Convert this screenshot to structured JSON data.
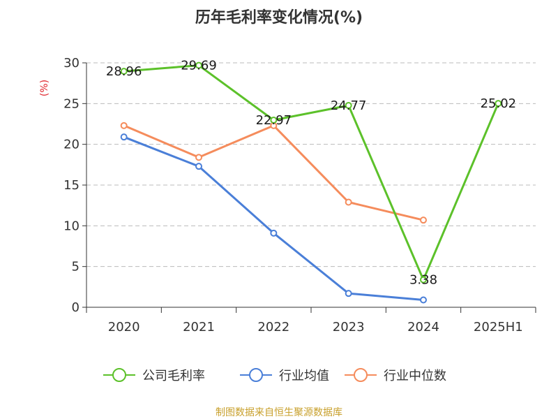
{
  "chart_data": {
    "type": "line",
    "title": "历年毛利率变化情况(%)",
    "ylabel": "(%)",
    "categories": [
      "2020",
      "2021",
      "2022",
      "2023",
      "2024",
      "2025H1"
    ],
    "ylim": [
      0,
      30
    ],
    "yticks": [
      "0",
      "5",
      "10",
      "15",
      "20",
      "25",
      "30"
    ],
    "grid": true,
    "legend_position": "bottom",
    "series": [
      {
        "name": "公司毛利率",
        "color": "#5cc12a",
        "values": [
          28.96,
          29.69,
          22.97,
          24.77,
          3.38,
          25.02
        ],
        "labels": [
          "28.96",
          "29.69",
          "22.97",
          "24.77",
          "3.38",
          "25.02"
        ]
      },
      {
        "name": "行业均值",
        "color": "#4a7fd8",
        "values": [
          20.9,
          17.3,
          9.1,
          1.7,
          0.9,
          null
        ]
      },
      {
        "name": "行业中位数",
        "color": "#f58c5c",
        "values": [
          22.3,
          18.4,
          22.3,
          12.9,
          10.7,
          null
        ]
      }
    ]
  },
  "source_text": "制图数据来自恒生聚源数据库"
}
